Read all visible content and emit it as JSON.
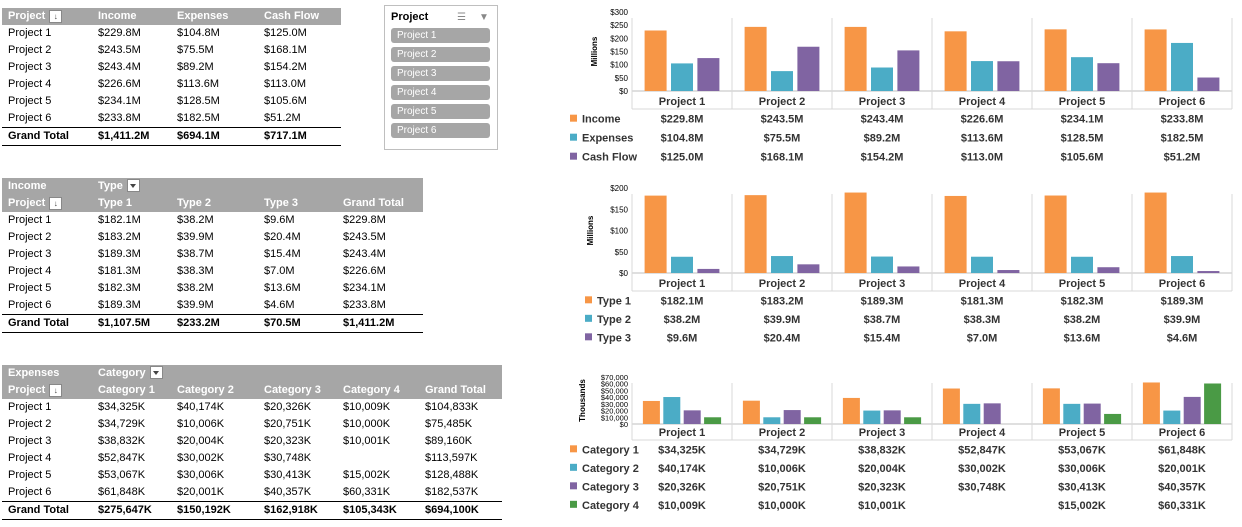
{
  "pivot1": {
    "headers": [
      "Project",
      "Income",
      "Expenses",
      "Cash Flow"
    ],
    "rows": [
      [
        "Project 1",
        "$229.8M",
        "$104.8M",
        "$125.0M"
      ],
      [
        "Project 2",
        "$243.5M",
        "$75.5M",
        "$168.1M"
      ],
      [
        "Project 3",
        "$243.4M",
        "$89.2M",
        "$154.2M"
      ],
      [
        "Project 4",
        "$226.6M",
        "$113.6M",
        "$113.0M"
      ],
      [
        "Project 5",
        "$234.1M",
        "$128.5M",
        "$105.6M"
      ],
      [
        "Project 6",
        "$233.8M",
        "$182.5M",
        "$51.2M"
      ]
    ],
    "total": [
      "Grand Total",
      "$1,411.2M",
      "$694.1M",
      "$717.1M"
    ]
  },
  "slicer": {
    "title": "Project",
    "items": [
      "Project 1",
      "Project 2",
      "Project 3",
      "Project 4",
      "Project 5",
      "Project 6"
    ]
  },
  "pivot2": {
    "header1": [
      "Income",
      "Type"
    ],
    "headers": [
      "Project",
      "Type 1",
      "Type 2",
      "Type 3",
      "Grand Total"
    ],
    "rows": [
      [
        "Project 1",
        "$182.1M",
        "$38.2M",
        "$9.6M",
        "$229.8M"
      ],
      [
        "Project 2",
        "$183.2M",
        "$39.9M",
        "$20.4M",
        "$243.5M"
      ],
      [
        "Project 3",
        "$189.3M",
        "$38.7M",
        "$15.4M",
        "$243.4M"
      ],
      [
        "Project 4",
        "$181.3M",
        "$38.3M",
        "$7.0M",
        "$226.6M"
      ],
      [
        "Project 5",
        "$182.3M",
        "$38.2M",
        "$13.6M",
        "$234.1M"
      ],
      [
        "Project 6",
        "$189.3M",
        "$39.9M",
        "$4.6M",
        "$233.8M"
      ]
    ],
    "total": [
      "Grand Total",
      "$1,107.5M",
      "$233.2M",
      "$70.5M",
      "$1,411.2M"
    ]
  },
  "pivot3": {
    "header1": [
      "Expenses",
      "Category"
    ],
    "headers": [
      "Project",
      "Category 1",
      "Category 2",
      "Category 3",
      "Category 4",
      "Grand Total"
    ],
    "rows": [
      [
        "Project 1",
        "$34,325K",
        "$40,174K",
        "$20,326K",
        "$10,009K",
        "$104,833K"
      ],
      [
        "Project 2",
        "$34,729K",
        "$10,006K",
        "$20,751K",
        "$10,000K",
        "$75,485K"
      ],
      [
        "Project 3",
        "$38,832K",
        "$20,004K",
        "$20,323K",
        "$10,001K",
        "$89,160K"
      ],
      [
        "Project 4",
        "$52,847K",
        "$30,002K",
        "$30,748K",
        "",
        "$113,597K"
      ],
      [
        "Project 5",
        "$53,067K",
        "$30,006K",
        "$30,413K",
        "$15,002K",
        "$128,488K"
      ],
      [
        "Project 6",
        "$61,848K",
        "$20,001K",
        "$40,357K",
        "$60,331K",
        "$182,537K"
      ]
    ],
    "total": [
      "Grand Total",
      "$275,647K",
      "$150,192K",
      "$162,918K",
      "$105,343K",
      "$694,100K"
    ]
  },
  "colors": {
    "orange": "#f79646",
    "teal": "#4bacc6",
    "purple": "#8064a2",
    "green": "#4a9a45"
  },
  "chart_data": [
    {
      "type": "bar",
      "ylabel": "Millions",
      "ylim": [
        0,
        300
      ],
      "yticks": [
        "$0",
        "$50",
        "$100",
        "$150",
        "$200",
        "$250",
        "$300"
      ],
      "categories": [
        "Project 1",
        "Project 2",
        "Project 3",
        "Project 4",
        "Project 5",
        "Project 6"
      ],
      "series": [
        {
          "name": "Income",
          "color": "#f79646",
          "values": [
            229.8,
            243.5,
            243.4,
            226.6,
            234.1,
            233.8
          ],
          "labels": [
            "$229.8M",
            "$243.5M",
            "$243.4M",
            "$226.6M",
            "$234.1M",
            "$233.8M"
          ]
        },
        {
          "name": "Expenses",
          "color": "#4bacc6",
          "values": [
            104.8,
            75.5,
            89.2,
            113.6,
            128.5,
            182.5
          ],
          "labels": [
            "$104.8M",
            "$75.5M",
            "$89.2M",
            "$113.6M",
            "$128.5M",
            "$182.5M"
          ]
        },
        {
          "name": "Cash Flow",
          "color": "#8064a2",
          "values": [
            125.0,
            168.1,
            154.2,
            113.0,
            105.6,
            51.2
          ],
          "labels": [
            "$125.0M",
            "$168.1M",
            "$154.2M",
            "$113.0M",
            "$105.6M",
            "$51.2M"
          ]
        }
      ]
    },
    {
      "type": "bar",
      "ylabel": "Millions",
      "ylim": [
        0,
        200
      ],
      "yticks": [
        "$0",
        "$50",
        "$100",
        "$150",
        "$200"
      ],
      "categories": [
        "Project 1",
        "Project 2",
        "Project 3",
        "Project 4",
        "Project 5",
        "Project 6"
      ],
      "series": [
        {
          "name": "Type 1",
          "color": "#f79646",
          "values": [
            182.1,
            183.2,
            189.3,
            181.3,
            182.3,
            189.3
          ],
          "labels": [
            "$182.1M",
            "$183.2M",
            "$189.3M",
            "$181.3M",
            "$182.3M",
            "$189.3M"
          ]
        },
        {
          "name": "Type 2",
          "color": "#4bacc6",
          "values": [
            38.2,
            39.9,
            38.7,
            38.3,
            38.2,
            39.9
          ],
          "labels": [
            "$38.2M",
            "$39.9M",
            "$38.7M",
            "$38.3M",
            "$38.2M",
            "$39.9M"
          ]
        },
        {
          "name": "Type 3",
          "color": "#8064a2",
          "values": [
            9.6,
            20.4,
            15.4,
            7.0,
            13.6,
            4.6
          ],
          "labels": [
            "$9.6M",
            "$20.4M",
            "$15.4M",
            "$7.0M",
            "$13.6M",
            "$4.6M"
          ]
        }
      ]
    },
    {
      "type": "bar",
      "ylabel": "Thousands",
      "ylim": [
        0,
        70000
      ],
      "yticks": [
        "$0",
        "$10,000",
        "$20,000",
        "$30,000",
        "$40,000",
        "$50,000",
        "$60,000",
        "$70,000"
      ],
      "categories": [
        "Project 1",
        "Project 2",
        "Project 3",
        "Project 4",
        "Project 5",
        "Project 6"
      ],
      "series": [
        {
          "name": "Category 1",
          "color": "#f79646",
          "values": [
            34325,
            34729,
            38832,
            52847,
            53067,
            61848
          ],
          "labels": [
            "$34,325K",
            "$34,729K",
            "$38,832K",
            "$52,847K",
            "$53,067K",
            "$61,848K"
          ]
        },
        {
          "name": "Category 2",
          "color": "#4bacc6",
          "values": [
            40174,
            10006,
            20004,
            30002,
            30006,
            20001
          ],
          "labels": [
            "$40,174K",
            "$10,006K",
            "$20,004K",
            "$30,002K",
            "$30,006K",
            "$20,001K"
          ]
        },
        {
          "name": "Category 3",
          "color": "#8064a2",
          "values": [
            20326,
            20751,
            20323,
            30748,
            30413,
            40357
          ],
          "labels": [
            "$20,326K",
            "$20,751K",
            "$20,323K",
            "$30,748K",
            "$30,413K",
            "$40,357K"
          ]
        },
        {
          "name": "Category 4",
          "color": "#4a9a45",
          "values": [
            10009,
            10000,
            10001,
            null,
            15002,
            60331
          ],
          "labels": [
            "$10,009K",
            "$10,000K",
            "$10,001K",
            "",
            "$15,002K",
            "$60,331K"
          ]
        }
      ]
    }
  ]
}
